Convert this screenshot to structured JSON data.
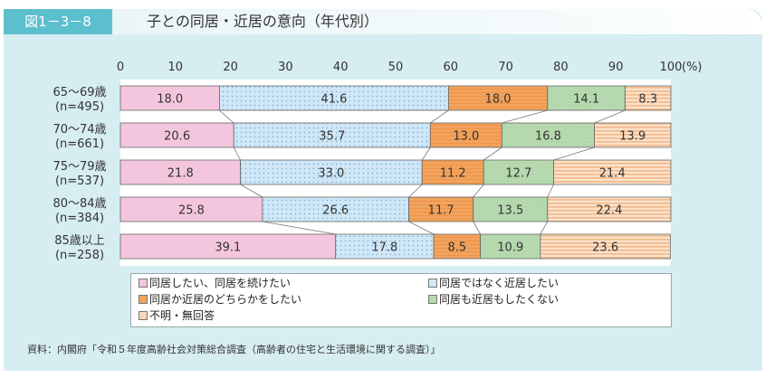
{
  "header": {
    "figure_number": "図1－3－8",
    "title": "子との同居・近居の意向（年代別）"
  },
  "source": "資料：内閣府「令和５年度高齢社会対策総合調査（高齢者の住宅と生活環境に関する調査）」",
  "colors": {
    "s1": "#f4c6dd",
    "s2": "#cfe7f6",
    "s3": "#f2a35e",
    "s4": "#b6d9b0",
    "s5": "#fad7b8",
    "border": "#555555"
  },
  "chart_data": {
    "type": "bar",
    "orientation": "horizontal-stacked-100",
    "x_ticks": [
      "0",
      "10",
      "20",
      "30",
      "40",
      "50",
      "60",
      "70",
      "80",
      "90",
      "100"
    ],
    "x_unit": "(%)",
    "xlim": [
      0,
      100
    ],
    "categories": [
      {
        "label": "65～69歳",
        "n": "(n=495)"
      },
      {
        "label": "70～74歳",
        "n": "(n=661)"
      },
      {
        "label": "75～79歳",
        "n": "(n=537)"
      },
      {
        "label": "80～84歳",
        "n": "(n=384)"
      },
      {
        "label": "85歳以上",
        "n": "(n=258)"
      }
    ],
    "series": [
      {
        "name": "同居したい、同居を続けたい",
        "values": [
          18.0,
          20.6,
          21.8,
          25.8,
          39.1
        ]
      },
      {
        "name": "同居ではなく近居したい",
        "values": [
          41.6,
          35.7,
          33.0,
          26.6,
          17.8
        ]
      },
      {
        "name": "同居か近居のどちらかをしたい",
        "values": [
          18.0,
          13.0,
          11.2,
          11.7,
          8.5
        ]
      },
      {
        "name": "同居も近居もしたくない",
        "values": [
          14.1,
          16.8,
          12.7,
          13.5,
          10.9
        ]
      },
      {
        "name": "不明・無回答",
        "values": [
          8.3,
          13.9,
          21.4,
          22.4,
          23.6
        ]
      }
    ],
    "value_labels": [
      [
        "18.0",
        "41.6",
        "18.0",
        "14.1",
        "8.3"
      ],
      [
        "20.6",
        "35.7",
        "13.0",
        "16.8",
        "13.9"
      ],
      [
        "21.8",
        "33.0",
        "11.2",
        "12.7",
        "21.4"
      ],
      [
        "25.8",
        "26.6",
        "11.7",
        "13.5",
        "22.4"
      ],
      [
        "39.1",
        "17.8",
        "8.5",
        "10.9",
        "23.6"
      ]
    ],
    "legend_position": "bottom"
  }
}
